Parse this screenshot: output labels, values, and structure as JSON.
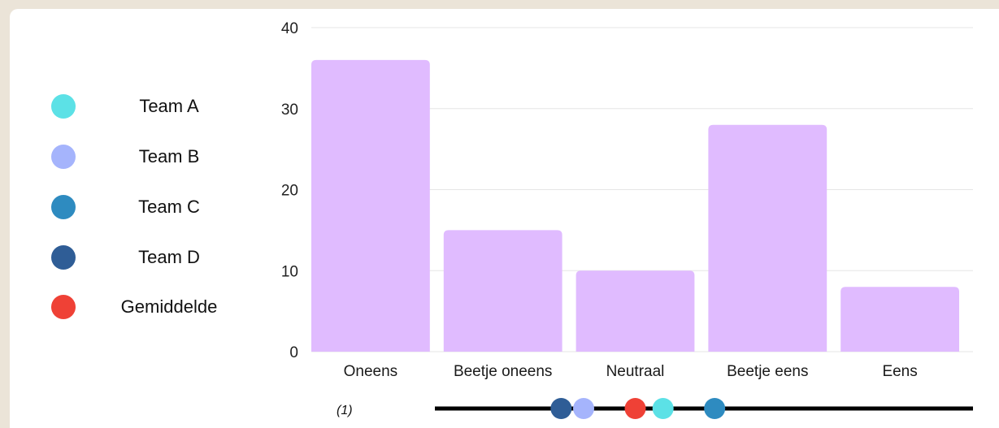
{
  "legend": [
    {
      "label": "Team A",
      "color": "#5ce1e6"
    },
    {
      "label": "Team B",
      "color": "#a5b4fc"
    },
    {
      "label": "Team C",
      "color": "#2e8bc0"
    },
    {
      "label": "Team D",
      "color": "#2f5d96"
    },
    {
      "label": "Gemiddelde",
      "color": "#ef4136"
    }
  ],
  "chart_data": {
    "type": "bar",
    "title": "",
    "xlabel": "",
    "ylabel": "",
    "categories": [
      "Oneens",
      "Beetje oneens",
      "Neutraal",
      "Beetje eens",
      "Eens"
    ],
    "values": [
      36,
      15,
      10,
      28,
      8
    ],
    "ylim": [
      0,
      40
    ],
    "yticks": [
      0,
      10,
      20,
      30,
      40
    ],
    "grid": true,
    "bar_color": "#e0bbff",
    "legend_position": "left"
  },
  "scale": {
    "note": "(1)",
    "markers": [
      {
        "series": "Team D",
        "color": "#2f5d96",
        "value": 2.44
      },
      {
        "series": "Team B",
        "color": "#a5b4fc",
        "value": 2.61
      },
      {
        "series": "Gemiddelde",
        "color": "#ef4136",
        "value": 3.0
      },
      {
        "series": "Team A",
        "color": "#5ce1e6",
        "value": 3.21
      },
      {
        "series": "Team C",
        "color": "#2e8bc0",
        "value": 3.6
      }
    ]
  }
}
